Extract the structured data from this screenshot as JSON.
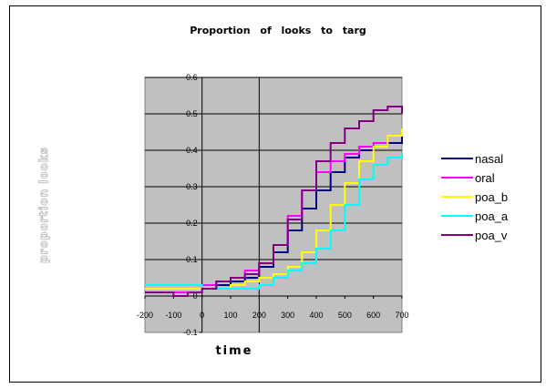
{
  "chart_data": {
    "type": "line",
    "title": "Proportion of looks to targ",
    "xlabel": "time",
    "ylabel": "proportion looks",
    "xlim": [
      -200,
      700
    ],
    "ylim": [
      -0.1,
      0.6
    ],
    "xticks": [
      -200,
      -100,
      0,
      100,
      200,
      300,
      400,
      500,
      600,
      700
    ],
    "yticks": [
      -0.1,
      0,
      0.1,
      0.2,
      0.3,
      0.4,
      0.5,
      0.6
    ],
    "xtick_labels": [
      "-200",
      "-100",
      "0",
      "100",
      "200",
      "300",
      "400",
      "500",
      "600",
      "700"
    ],
    "ytick_labels": [
      "-0.1",
      "0",
      "0.1",
      "0.2",
      "0.3",
      "0.4",
      "0.5",
      "0.6"
    ],
    "grid": "horizontal",
    "plot_background": "#c0c0c0",
    "legend_position": "right",
    "series": [
      {
        "name": "nasal",
        "color": "#000080",
        "x": [
          -200,
          -150,
          -100,
          -50,
          0,
          50,
          100,
          150,
          200,
          250,
          300,
          350,
          400,
          450,
          500,
          550,
          600,
          650,
          700
        ],
        "y": [
          0.02,
          0.02,
          0.02,
          0.02,
          0.02,
          0.03,
          0.04,
          0.05,
          0.08,
          0.12,
          0.18,
          0.24,
          0.29,
          0.34,
          0.38,
          0.4,
          0.41,
          0.42,
          0.44
        ]
      },
      {
        "name": "oral",
        "color": "#ff00ff",
        "x": [
          -200,
          -150,
          -100,
          -50,
          0,
          50,
          100,
          150,
          200,
          250,
          300,
          350,
          400,
          450,
          500,
          550,
          600,
          650,
          700
        ],
        "y": [
          0.01,
          0.01,
          0.01,
          0.01,
          0.03,
          0.04,
          0.05,
          0.07,
          0.09,
          0.14,
          0.22,
          0.29,
          0.34,
          0.37,
          0.39,
          0.41,
          0.42,
          0.44,
          0.45
        ]
      },
      {
        "name": "poa_b",
        "color": "#ffff00",
        "x": [
          -200,
          -150,
          -100,
          -50,
          0,
          50,
          100,
          150,
          200,
          250,
          300,
          350,
          400,
          450,
          500,
          550,
          600,
          650,
          700
        ],
        "y": [
          0.02,
          0.02,
          0.02,
          0.02,
          0.02,
          0.02,
          0.03,
          0.04,
          0.05,
          0.06,
          0.08,
          0.12,
          0.18,
          0.25,
          0.31,
          0.37,
          0.41,
          0.44,
          0.46
        ]
      },
      {
        "name": "poa_a",
        "color": "#00ffff",
        "x": [
          -200,
          -150,
          -100,
          -50,
          0,
          50,
          100,
          150,
          200,
          250,
          300,
          350,
          400,
          450,
          500,
          550,
          600,
          650,
          700
        ],
        "y": [
          0.03,
          0.03,
          0.03,
          0.03,
          0.02,
          0.02,
          0.02,
          0.02,
          0.03,
          0.05,
          0.07,
          0.09,
          0.13,
          0.18,
          0.25,
          0.32,
          0.36,
          0.38,
          0.39
        ]
      },
      {
        "name": "poa_v",
        "color": "#800080",
        "x": [
          -200,
          -150,
          -100,
          -50,
          0,
          50,
          100,
          150,
          200,
          250,
          300,
          350,
          400,
          450,
          500,
          550,
          600,
          650,
          700
        ],
        "y": [
          0.01,
          0.01,
          0.0,
          0.01,
          0.02,
          0.04,
          0.05,
          0.06,
          0.09,
          0.14,
          0.21,
          0.29,
          0.37,
          0.42,
          0.46,
          0.48,
          0.51,
          0.52,
          0.5
        ]
      }
    ]
  }
}
